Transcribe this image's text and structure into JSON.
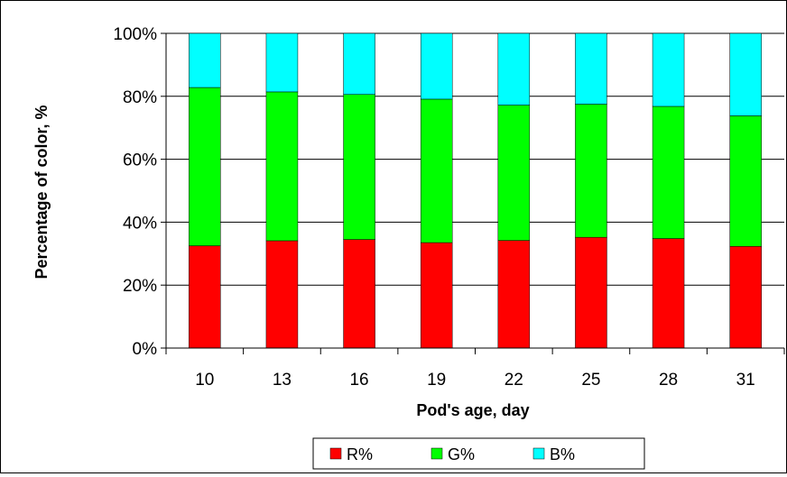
{
  "chart_data": {
    "type": "bar",
    "stacked": true,
    "title": "",
    "xlabel": "Pod's age, day",
    "ylabel": "Percentage of color, %",
    "categories": [
      "10",
      "13",
      "16",
      "19",
      "22",
      "25",
      "28",
      "31"
    ],
    "ylim": [
      0,
      100
    ],
    "yticks": [
      "0%",
      "20%",
      "40%",
      "60%",
      "80%",
      "100%"
    ],
    "grid": true,
    "legend_position": "bottom",
    "series": [
      {
        "name": "R%",
        "color": "#ff0000",
        "values": [
          32.5,
          34.1,
          34.5,
          33.5,
          34.2,
          35.2,
          34.8,
          32.3
        ]
      },
      {
        "name": "G%",
        "color": "#00ff00",
        "values": [
          50.3,
          47.3,
          46.1,
          45.6,
          43.0,
          42.3,
          42.0,
          41.5
        ]
      },
      {
        "name": "B%",
        "color": "#00ffff",
        "values": [
          17.2,
          18.6,
          19.4,
          20.9,
          22.8,
          22.5,
          23.2,
          26.2
        ]
      }
    ]
  }
}
